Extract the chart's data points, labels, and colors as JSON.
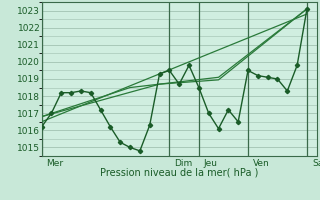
{
  "xlabel": "Pression niveau de la mer( hPa )",
  "background_color": "#c8e8d8",
  "plot_bg_color": "#d0eee0",
  "grid_color": "#a8c8b8",
  "line_color": "#1a5c28",
  "trend_color": "#2a7a3a",
  "ylim": [
    1014.5,
    1023.5
  ],
  "yticks": [
    1015,
    1016,
    1017,
    1018,
    1019,
    1020,
    1021,
    1022,
    1023
  ],
  "xlim": [
    0,
    28
  ],
  "day_labels": [
    "Mer",
    "Dim",
    "Jeu",
    "Ven",
    "Sam"
  ],
  "day_positions": [
    0.5,
    13.5,
    16.5,
    21.5,
    27.5
  ],
  "vline_positions": [
    0,
    13,
    16,
    21,
    27
  ],
  "series1_x": [
    0,
    1,
    2,
    3,
    4,
    5,
    6,
    7,
    8,
    9,
    10,
    11,
    12,
    13,
    14,
    15,
    16,
    17,
    18,
    19,
    20,
    21,
    22,
    23,
    24,
    25,
    26,
    27
  ],
  "series1_y": [
    1016.2,
    1017.0,
    1018.2,
    1018.2,
    1018.3,
    1018.2,
    1017.2,
    1016.2,
    1015.3,
    1015.0,
    1014.8,
    1016.3,
    1019.3,
    1019.5,
    1018.7,
    1019.8,
    1018.5,
    1017.0,
    1016.1,
    1017.2,
    1016.5,
    1019.5,
    1019.2,
    1019.1,
    1019.0,
    1018.3,
    1019.8,
    1023.1
  ],
  "trend1_x": [
    0,
    27
  ],
  "trend1_y": [
    1016.5,
    1022.8
  ],
  "trend2_x": [
    0,
    12,
    18,
    27
  ],
  "trend2_y": [
    1016.8,
    1018.7,
    1018.95,
    1023.1
  ],
  "trend3_x": [
    0,
    9,
    18,
    27
  ],
  "trend3_y": [
    1016.8,
    1018.5,
    1019.1,
    1023.1
  ]
}
